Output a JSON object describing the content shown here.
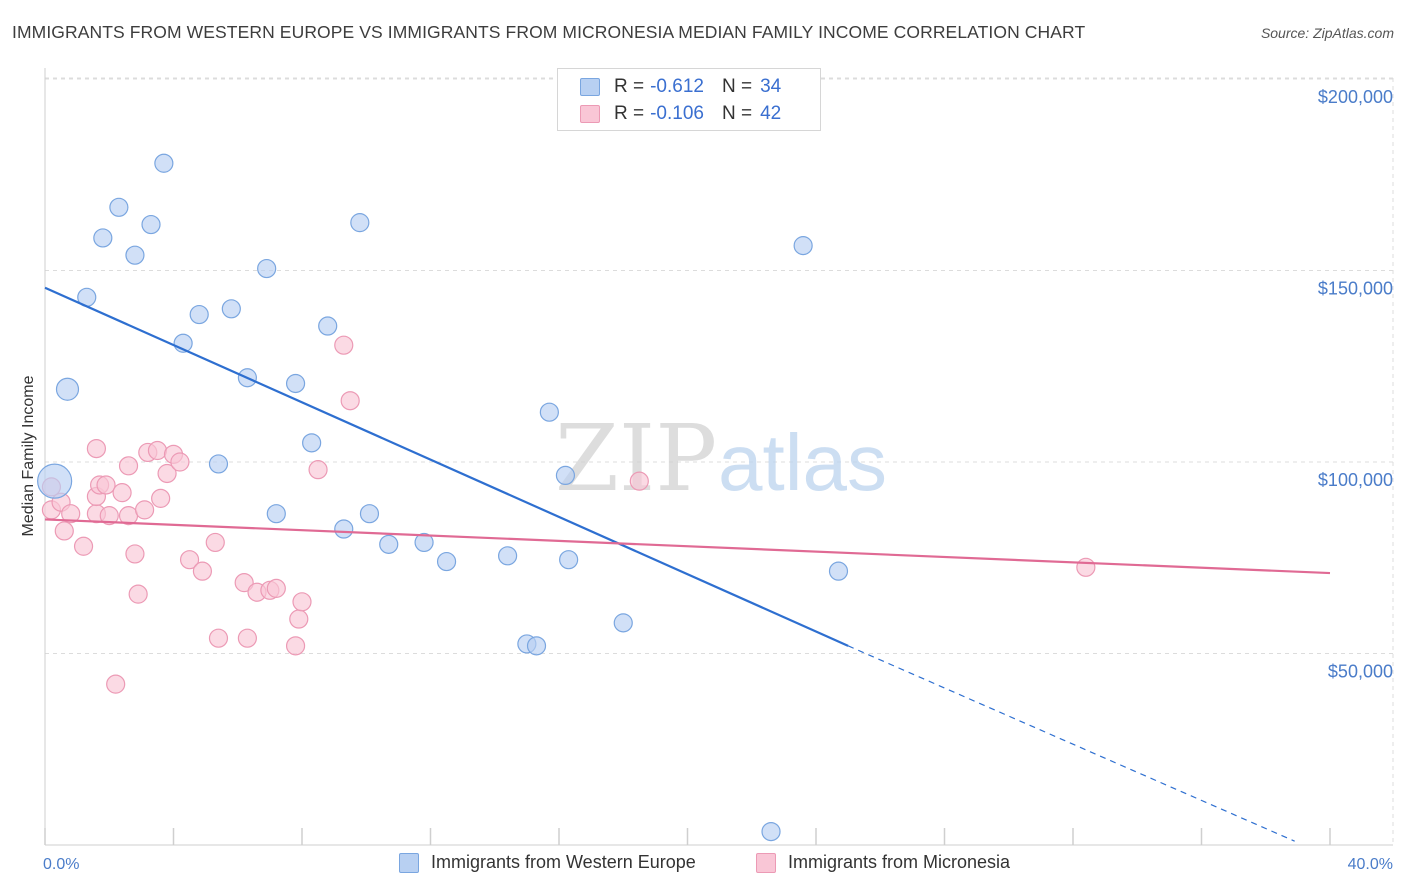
{
  "title": "IMMIGRANTS FROM WESTERN EUROPE VS IMMIGRANTS FROM MICRONESIA MEDIAN FAMILY INCOME CORRELATION CHART",
  "source": "Source: ZipAtlas.com",
  "watermark": {
    "zip": "ZIP",
    "atlas": "atlas"
  },
  "colors": {
    "blue_fill": "#b8d0f2",
    "blue_stroke": "#7aa6e0",
    "blue_line": "#2e6fd0",
    "pink_fill": "#f9c6d6",
    "pink_stroke": "#ec9ab5",
    "pink_line": "#e06a94",
    "grid": "#dcdcdc",
    "axis_label": "#4a7cc9"
  },
  "legend": {
    "r_label": "R =",
    "n_label": "N =",
    "series": [
      {
        "r_value": "-0.612",
        "n_value": "34"
      },
      {
        "r_value": "-0.106",
        "n_value": "42"
      }
    ]
  },
  "bottom_legend": [
    "Immigrants from Western Europe",
    "Immigrants from Micronesia"
  ],
  "chart_data": {
    "type": "scatter",
    "title": "IMMIGRANTS FROM WESTERN EUROPE VS IMMIGRANTS FROM MICRONESIA MEDIAN FAMILY INCOME CORRELATION CHART",
    "xlabel": "",
    "ylabel": "Median Family Income",
    "xlim": [
      0,
      40
    ],
    "ylim": [
      0,
      205000
    ],
    "x_tick_labels": [
      "0.0%",
      "40.0%"
    ],
    "y_ticks": [
      50000,
      100000,
      150000,
      200000
    ],
    "y_tick_labels": [
      "$50,000",
      "$100,000",
      "$150,000",
      "$200,000"
    ],
    "series": [
      {
        "name": "Immigrants from Western Europe",
        "color": "blue",
        "trend": {
          "x0": 0,
          "y0": 145500,
          "x1": 25.0,
          "y1": 52000,
          "dashed_to_x": 38.9,
          "dashed_to_y": 1000
        },
        "points": [
          [
            0.3,
            95000,
            "large"
          ],
          [
            0.7,
            119000,
            "medium"
          ],
          [
            1.3,
            143000
          ],
          [
            1.8,
            158500
          ],
          [
            2.3,
            166500
          ],
          [
            2.8,
            154000
          ],
          [
            3.3,
            162000
          ],
          [
            3.7,
            178000
          ],
          [
            4.3,
            131000
          ],
          [
            4.8,
            138500
          ],
          [
            5.4,
            99500
          ],
          [
            5.8,
            140000
          ],
          [
            6.3,
            122000
          ],
          [
            6.9,
            150500
          ],
          [
            7.2,
            86500
          ],
          [
            7.8,
            120500
          ],
          [
            8.3,
            105000
          ],
          [
            8.8,
            135500
          ],
          [
            9.3,
            82500
          ],
          [
            9.8,
            162500
          ],
          [
            10.1,
            86500
          ],
          [
            10.7,
            78500
          ],
          [
            11.8,
            79000
          ],
          [
            12.5,
            74000
          ],
          [
            14.4,
            75500
          ],
          [
            15.0,
            52500
          ],
          [
            15.3,
            52000
          ],
          [
            15.7,
            113000
          ],
          [
            16.2,
            96500
          ],
          [
            16.3,
            74500
          ],
          [
            18.0,
            58000
          ],
          [
            23.6,
            156500
          ],
          [
            24.7,
            71500
          ],
          [
            22.6,
            3500
          ]
        ]
      },
      {
        "name": "Immigrants from Micronesia",
        "color": "pink",
        "trend": {
          "x0": 0,
          "y0": 85000,
          "x1": 40,
          "y1": 71000
        },
        "points": [
          [
            0.2,
            93500
          ],
          [
            0.2,
            87500
          ],
          [
            0.5,
            89500
          ],
          [
            0.6,
            82000
          ],
          [
            0.8,
            86500
          ],
          [
            1.2,
            78000
          ],
          [
            1.6,
            86500
          ],
          [
            1.6,
            91000
          ],
          [
            1.6,
            103500
          ],
          [
            1.7,
            94000
          ],
          [
            1.9,
            94000
          ],
          [
            2.0,
            86000
          ],
          [
            2.2,
            42000
          ],
          [
            2.4,
            92000
          ],
          [
            2.6,
            86000
          ],
          [
            2.6,
            99000
          ],
          [
            2.8,
            76000
          ],
          [
            2.9,
            65500
          ],
          [
            3.1,
            87500
          ],
          [
            3.2,
            102500
          ],
          [
            3.5,
            103000
          ],
          [
            3.6,
            90500
          ],
          [
            3.8,
            97000
          ],
          [
            4.0,
            102000
          ],
          [
            4.2,
            100000
          ],
          [
            4.5,
            74500
          ],
          [
            4.9,
            71500
          ],
          [
            5.3,
            79000
          ],
          [
            5.4,
            54000
          ],
          [
            6.2,
            68500
          ],
          [
            6.3,
            54000
          ],
          [
            6.6,
            66000
          ],
          [
            7.0,
            66500
          ],
          [
            7.2,
            67000
          ],
          [
            7.8,
            52000
          ],
          [
            7.9,
            59000
          ],
          [
            8.0,
            63500
          ],
          [
            8.5,
            98000
          ],
          [
            9.3,
            130500
          ],
          [
            9.5,
            116000
          ],
          [
            18.5,
            95000
          ],
          [
            32.4,
            72500
          ]
        ]
      }
    ]
  }
}
